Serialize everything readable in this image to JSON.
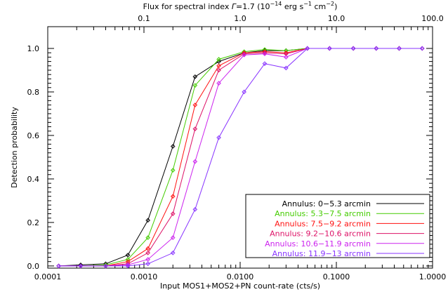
{
  "chart_data": {
    "type": "line",
    "xscale": "log",
    "xlabel": "Input MOS1+MOS2+PN count-rate (cts/s)",
    "ylabel": "Detection probability",
    "top_axis": {
      "label_parts": {
        "prefix": "Flux for spectral index ",
        "gamma": "Γ",
        "index": "=1.7 (10",
        "exp14": "−14",
        "unit1": " erg s",
        "exp1": "−1",
        "unit2": " cm",
        "exp2": "−2",
        "close": ")"
      },
      "tick_labels": [
        "0.1",
        "1.0",
        "10.0",
        "100.0"
      ],
      "tick_positions_countrate": [
        0.001,
        0.01,
        0.1,
        1.0
      ]
    },
    "xlim": [
      0.0001,
      1.0
    ],
    "ylim": [
      -0.01,
      1.1
    ],
    "x_tick_labels": [
      "0.0001",
      "0.0010",
      "0.0100",
      "0.1000",
      "1.0000"
    ],
    "y_tick_labels": [
      "0.0",
      "0.2",
      "0.4",
      "0.6",
      "0.8",
      "1.0"
    ],
    "x": [
      0.00013,
      0.00022,
      0.0004,
      0.00068,
      0.0011,
      0.002,
      0.0034,
      0.006,
      0.011,
      0.018,
      0.03,
      0.05,
      0.085,
      0.15,
      0.26,
      0.45,
      0.78
    ],
    "legend_position": "bottom-right",
    "series": [
      {
        "name": "Annulus: 0−5.3 arcmin",
        "color": "#000000",
        "values": [
          0.0,
          0.005,
          0.01,
          0.05,
          0.21,
          0.55,
          0.87,
          0.94,
          0.98,
          0.99,
          0.99,
          1.0,
          1.0,
          1.0,
          1.0,
          1.0,
          1.0
        ]
      },
      {
        "name": "Annulus: 5.3−7.5 arcmin",
        "color": "#44cc00",
        "values": [
          0.0,
          0.0,
          0.005,
          0.03,
          0.13,
          0.44,
          0.83,
          0.95,
          0.985,
          0.995,
          0.99,
          1.0,
          1.0,
          1.0,
          1.0,
          1.0,
          1.0
        ]
      },
      {
        "name": "Annulus: 7.5−9.2 arcmin",
        "color": "#ff1111",
        "values": [
          0.0,
          0.0,
          0.0,
          0.02,
          0.08,
          0.32,
          0.74,
          0.92,
          0.98,
          0.985,
          0.98,
          1.0,
          1.0,
          1.0,
          1.0,
          1.0,
          1.0
        ]
      },
      {
        "name": "Annulus: 9.2−10.6 arcmin",
        "color": "#dd1166",
        "values": [
          0.0,
          0.0,
          0.0,
          0.01,
          0.06,
          0.24,
          0.63,
          0.9,
          0.975,
          0.98,
          0.975,
          1.0,
          1.0,
          1.0,
          1.0,
          1.0,
          1.0
        ]
      },
      {
        "name": "Annulus: 10.6−11.9 arcmin",
        "color": "#cc22ee",
        "values": [
          0.0,
          0.0,
          0.0,
          0.005,
          0.03,
          0.13,
          0.48,
          0.84,
          0.97,
          0.975,
          0.96,
          1.0,
          1.0,
          1.0,
          1.0,
          1.0,
          1.0
        ]
      },
      {
        "name": "Annulus: 11.9−13 arcmin",
        "color": "#8833ff",
        "values": [
          0.0,
          0.0,
          0.0,
          0.0,
          0.01,
          0.06,
          0.26,
          0.59,
          0.8,
          0.93,
          0.91,
          1.0,
          1.0,
          1.0,
          1.0,
          1.0,
          1.0
        ]
      }
    ]
  }
}
